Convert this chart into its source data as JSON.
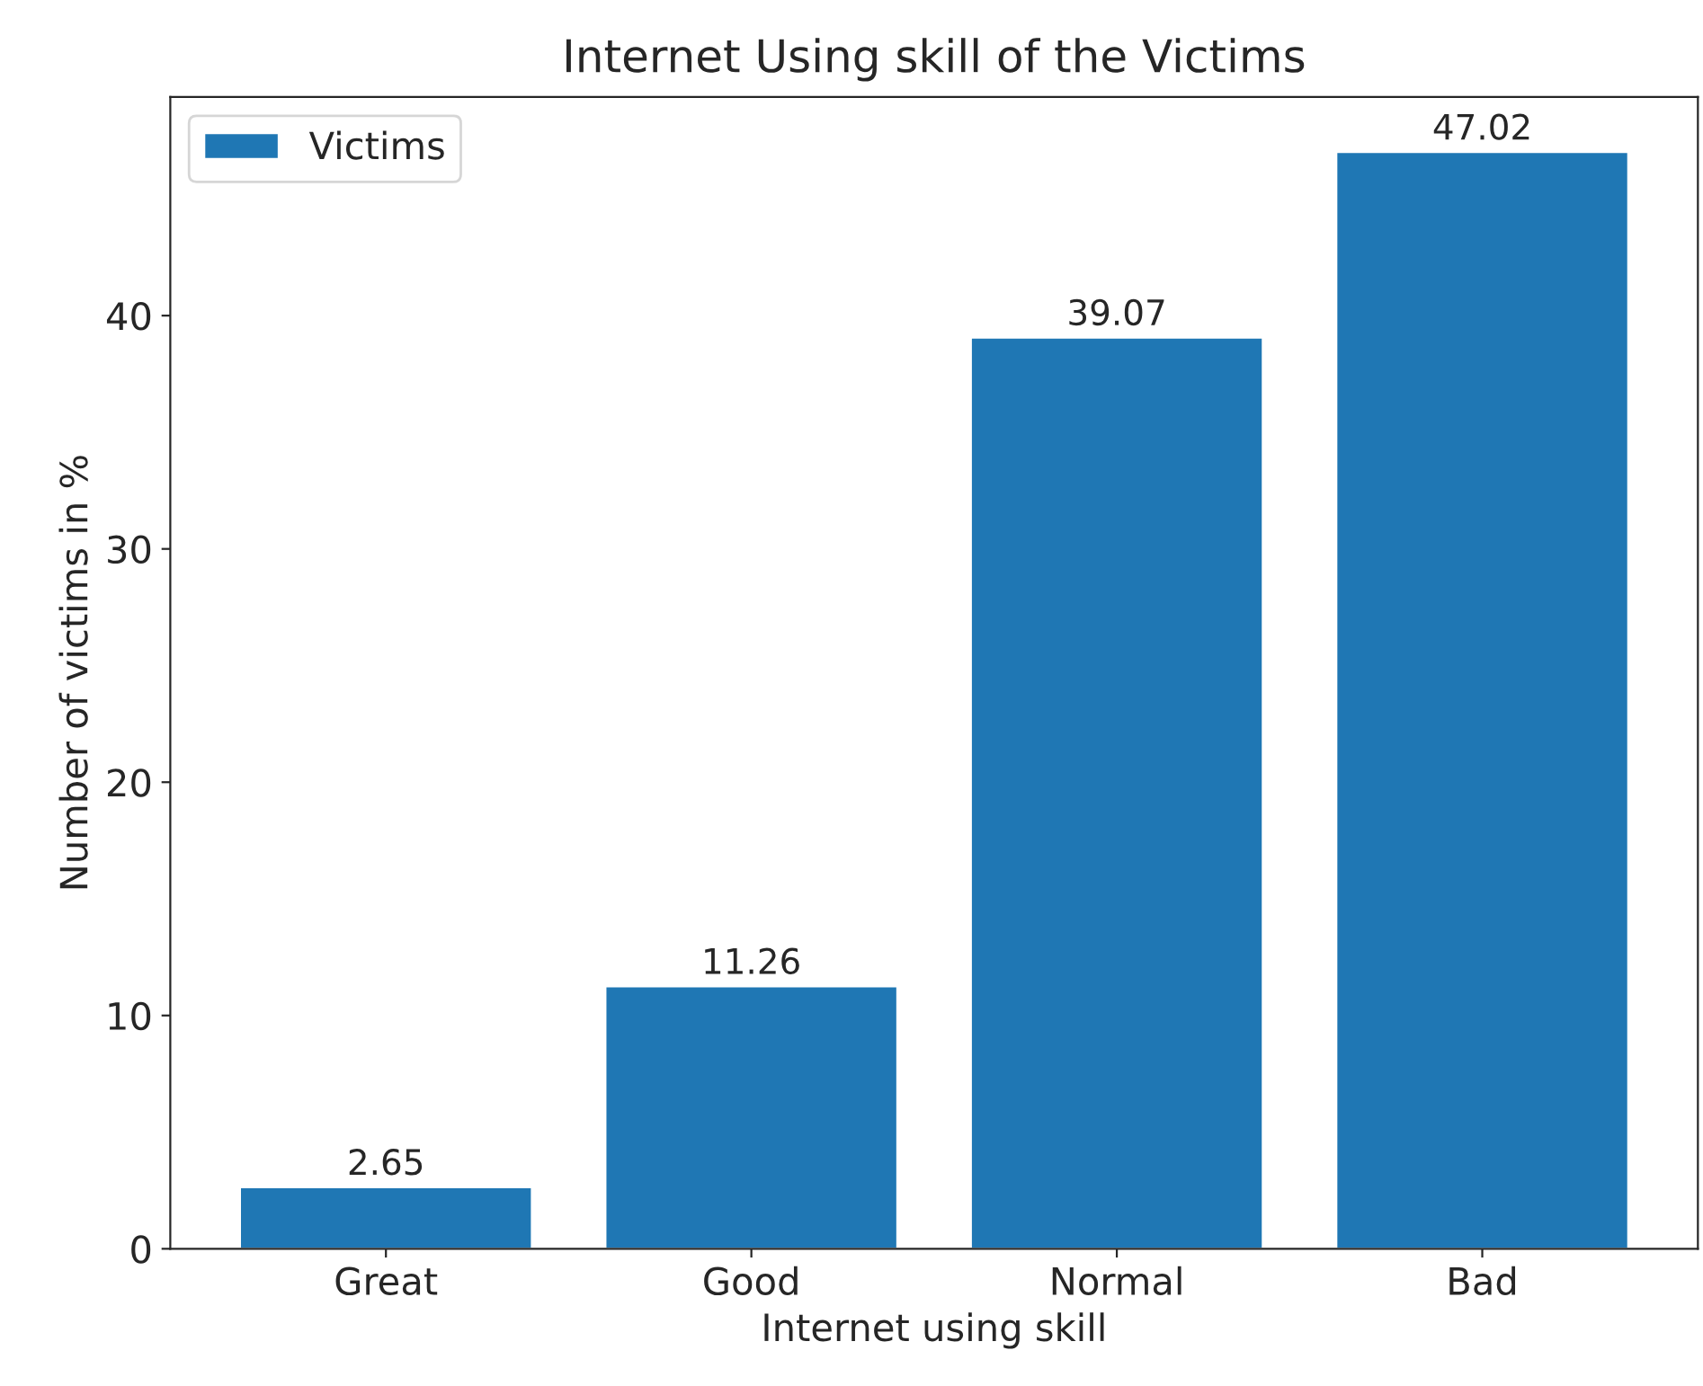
{
  "chart_data": {
    "type": "bar",
    "title": "Internet Using skill of the Victims",
    "xlabel": "Internet using skill",
    "ylabel": "Number of victims in %",
    "categories": [
      "Great",
      "Good",
      "Normal",
      "Bad"
    ],
    "series": [
      {
        "name": "Victims",
        "color": "#1f77b4",
        "values": [
          2.65,
          11.26,
          39.07,
          47.02
        ]
      }
    ],
    "ylim": [
      0,
      49.37
    ],
    "yticks": [
      0,
      10,
      20,
      30,
      40
    ],
    "data_labels": true,
    "legend": "top left",
    "grid": false
  }
}
